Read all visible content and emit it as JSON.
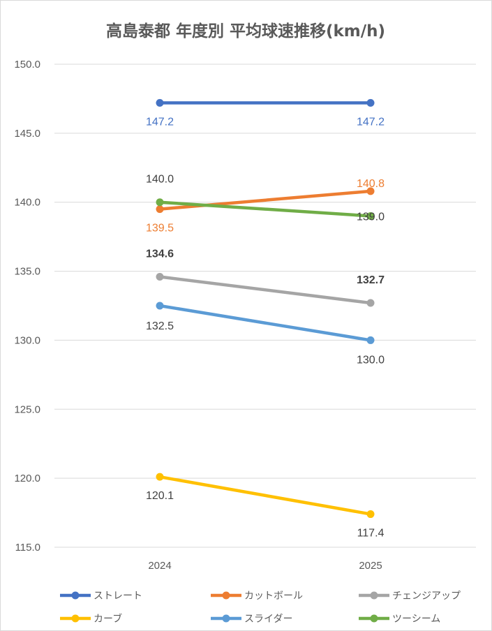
{
  "chart_data": {
    "type": "line",
    "title": "高島泰都 年度別 平均球速推移(km/h)",
    "categories": [
      "2024",
      "2025"
    ],
    "ylim": [
      115,
      150
    ],
    "yticks": [
      "115.0",
      "120.0",
      "125.0",
      "130.0",
      "135.0",
      "140.0",
      "145.0",
      "150.0"
    ],
    "grid": true,
    "legend_position": "bottom",
    "series": [
      {
        "name": "ストレート",
        "color": "#4472C4",
        "values": [
          147.2,
          147.2
        ],
        "labels": [
          "147.2",
          "147.2"
        ],
        "label_color": "#4472C4"
      },
      {
        "name": "カットボール",
        "color": "#ED7D31",
        "values": [
          139.5,
          140.8
        ],
        "labels": [
          "139.5",
          "140.8"
        ],
        "label_color": "#ED7D31"
      },
      {
        "name": "チェンジアップ",
        "color": "#A5A5A5",
        "values": [
          134.6,
          132.7
        ],
        "labels": [
          "134.6",
          "132.7"
        ],
        "label_color": "#404040"
      },
      {
        "name": "カーブ",
        "color": "#FFC000",
        "values": [
          120.1,
          117.4
        ],
        "labels": [
          "120.1",
          "117.4"
        ],
        "label_color": "#404040"
      },
      {
        "name": "スライダー",
        "color": "#5B9BD5",
        "values": [
          132.5,
          130.0
        ],
        "labels": [
          "132.5",
          "130.0"
        ],
        "label_color": "#404040"
      },
      {
        "name": "ツーシーム",
        "color": "#70AD47",
        "values": [
          140.0,
          139.0
        ],
        "labels": [
          "140.0",
          "139.0"
        ],
        "label_color": "#404040"
      }
    ]
  }
}
